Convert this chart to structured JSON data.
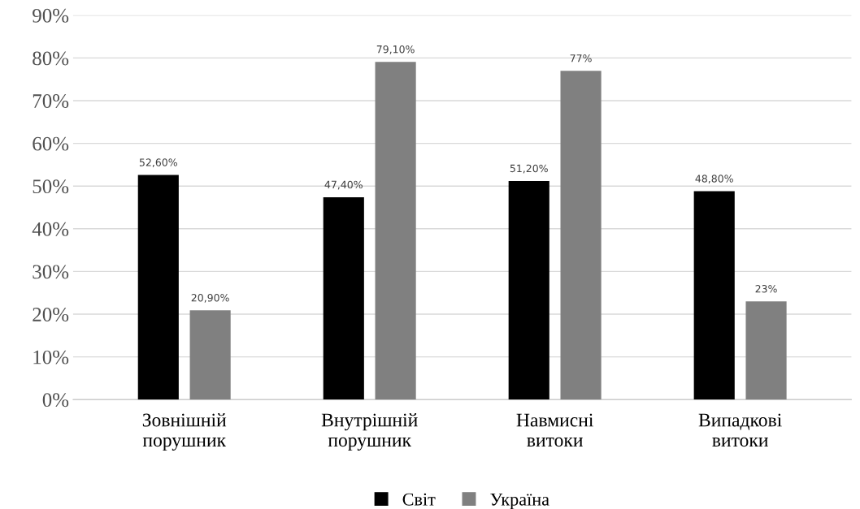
{
  "chart_data": {
    "type": "bar",
    "categories": [
      "Зовнішній\nпорушник",
      "Внутрішній\nпорушник",
      "Навмисні\nвитоки",
      "Випадкові\nвитоки"
    ],
    "series": [
      {
        "name": "Світ",
        "color": "#000000",
        "values": [
          52.6,
          47.4,
          51.2,
          48.8
        ],
        "value_labels": [
          "52,60%",
          "47,40%",
          "51,20%",
          "48,80%"
        ]
      },
      {
        "name": "Україна",
        "color": "#808080",
        "values": [
          20.9,
          79.1,
          77,
          23
        ],
        "value_labels": [
          "20,90%",
          "79,10%",
          "77%",
          "23%"
        ]
      }
    ],
    "ylim": [
      0,
      90
    ],
    "yticks": [
      {
        "value": 0,
        "label": "0%"
      },
      {
        "value": 10,
        "label": "10%"
      },
      {
        "value": 20,
        "label": "20%"
      },
      {
        "value": 30,
        "label": "30%"
      },
      {
        "value": 40,
        "label": "40%"
      },
      {
        "value": 50,
        "label": "50%"
      },
      {
        "value": 60,
        "label": "60%"
      },
      {
        "value": 70,
        "label": "70%"
      },
      {
        "value": 80,
        "label": "80%"
      },
      {
        "value": 90,
        "label": "90%"
      }
    ],
    "grid": "y",
    "legend": "bottom"
  }
}
